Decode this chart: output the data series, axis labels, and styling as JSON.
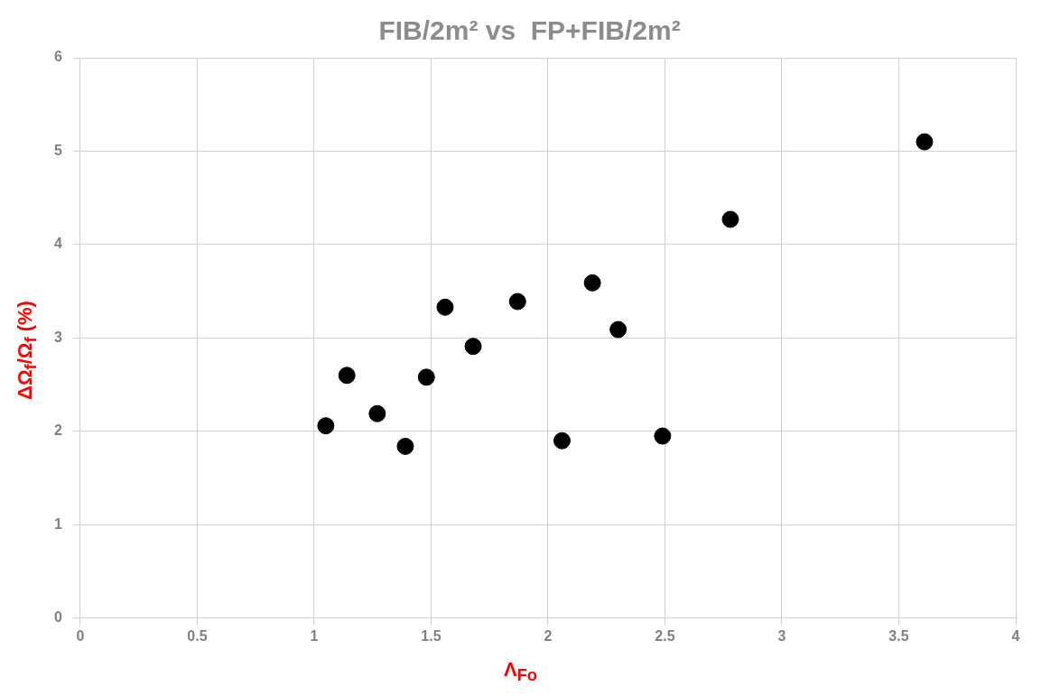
{
  "chart_data": {
    "type": "scatter",
    "title": "FIB/2m² vs  FP+FIB/2m²",
    "xlabel": "Λ$_{Fo}$",
    "ylabel": "ΔΩ$_{f}$/Ω$_{f}$ (%)",
    "x": [
      1.05,
      1.14,
      1.27,
      1.39,
      1.48,
      1.56,
      1.68,
      1.87,
      2.06,
      2.19,
      2.3,
      2.49,
      2.78,
      3.61
    ],
    "series": [
      {
        "color": "#000000",
        "values": [
          2.06,
          2.6,
          2.19,
          1.84,
          2.58,
          3.33,
          2.91,
          3.39,
          1.9,
          3.59,
          3.09,
          1.95,
          4.27,
          5.1
        ]
      }
    ],
    "xlim": [
      0,
      4
    ],
    "xticks": [
      0,
      0.5,
      1,
      1.5,
      2,
      2.5,
      3,
      3.5,
      4
    ],
    "ylim": [
      0,
      6
    ],
    "yticks": [
      0,
      1,
      2,
      3,
      4,
      5,
      6
    ],
    "grid": true,
    "legend": false,
    "marker": "circle"
  }
}
